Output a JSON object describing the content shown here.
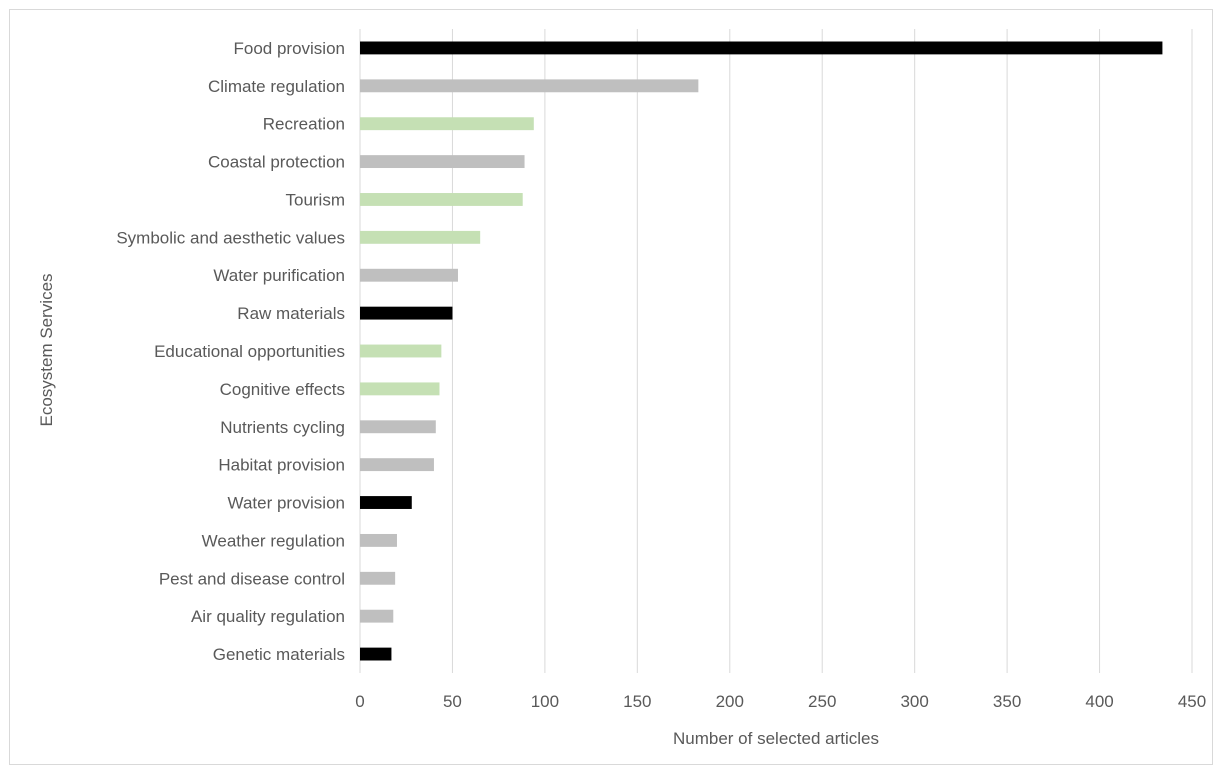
{
  "chart_data": {
    "type": "bar",
    "orientation": "horizontal",
    "ylabel": "Ecosystem Services",
    "xlabel": "Number of selected articles",
    "xlim": [
      0,
      450
    ],
    "x_ticks": [
      0,
      50,
      100,
      150,
      200,
      250,
      300,
      350,
      400,
      450
    ],
    "grid": "vertical",
    "legend": "none",
    "categories": [
      "Food provision",
      "Climate regulation",
      "Recreation",
      "Coastal protection",
      "Tourism",
      "Symbolic and aesthetic values",
      "Water purification",
      "Raw materials",
      "Educational opportunities",
      "Cognitive effects",
      "Nutrients cycling",
      "Habitat provision",
      "Water provision",
      "Weather regulation",
      "Pest and disease control",
      "Air quality regulation",
      "Genetic materials"
    ],
    "values": [
      434,
      183,
      94,
      89,
      88,
      65,
      53,
      50,
      44,
      43,
      41,
      40,
      28,
      20,
      19,
      18,
      17
    ],
    "bar_colors": [
      "#000000",
      "#bfbfbf",
      "#c5e0b4",
      "#bfbfbf",
      "#c5e0b4",
      "#c5e0b4",
      "#bfbfbf",
      "#000000",
      "#c5e0b4",
      "#c5e0b4",
      "#bfbfbf",
      "#bfbfbf",
      "#000000",
      "#bfbfbf",
      "#bfbfbf",
      "#bfbfbf",
      "#000000"
    ],
    "colors": {
      "provisioning": "#000000",
      "regulating": "#bfbfbf",
      "cultural": "#c5e0b4",
      "gridline": "#d9d9d9",
      "text": "#595959"
    }
  }
}
